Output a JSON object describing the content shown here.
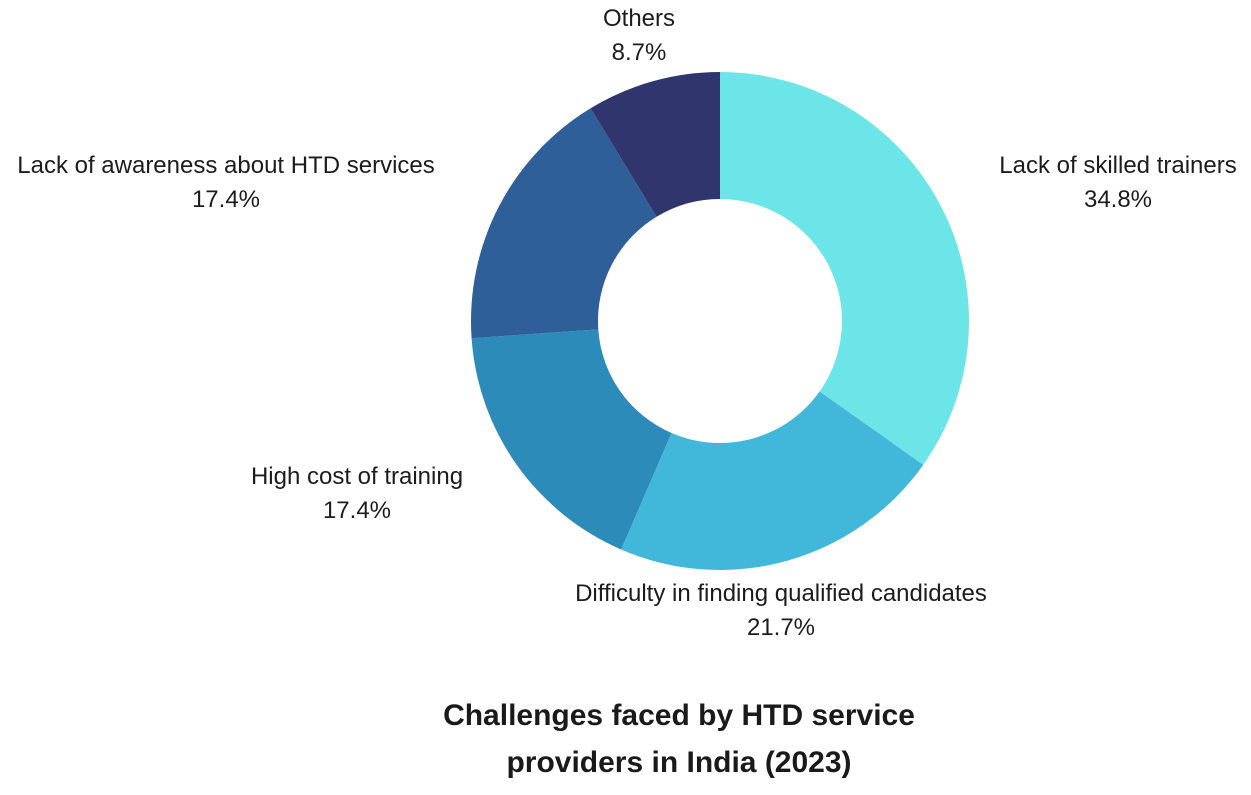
{
  "chart_data": {
    "type": "pie",
    "subtype": "donut",
    "title": "Challenges faced by HTD service providers in India (2023)",
    "start_angle_deg": 0,
    "direction": "clockwise",
    "inner_radius_ratio": 0.49,
    "background_color": "#ffffff",
    "legend_position": "labels-around-chart",
    "slices": [
      {
        "label": "Lack of skilled trainers",
        "value": 34.8,
        "pct_label": "34.8%",
        "color": "#6ce5e8"
      },
      {
        "label": "Difficulty in finding qualified candidates",
        "value": 21.7,
        "pct_label": "21.7%",
        "color": "#41b8d9"
      },
      {
        "label": "High cost of training",
        "value": 17.4,
        "pct_label": "17.4%",
        "color": "#2d8bba"
      },
      {
        "label": "Lack of awareness about HTD services",
        "value": 17.4,
        "pct_label": "17.4%",
        "color": "#2f5f98"
      },
      {
        "label": "Others",
        "value": 8.7,
        "pct_label": "8.7%",
        "color": "#31356e"
      }
    ]
  }
}
